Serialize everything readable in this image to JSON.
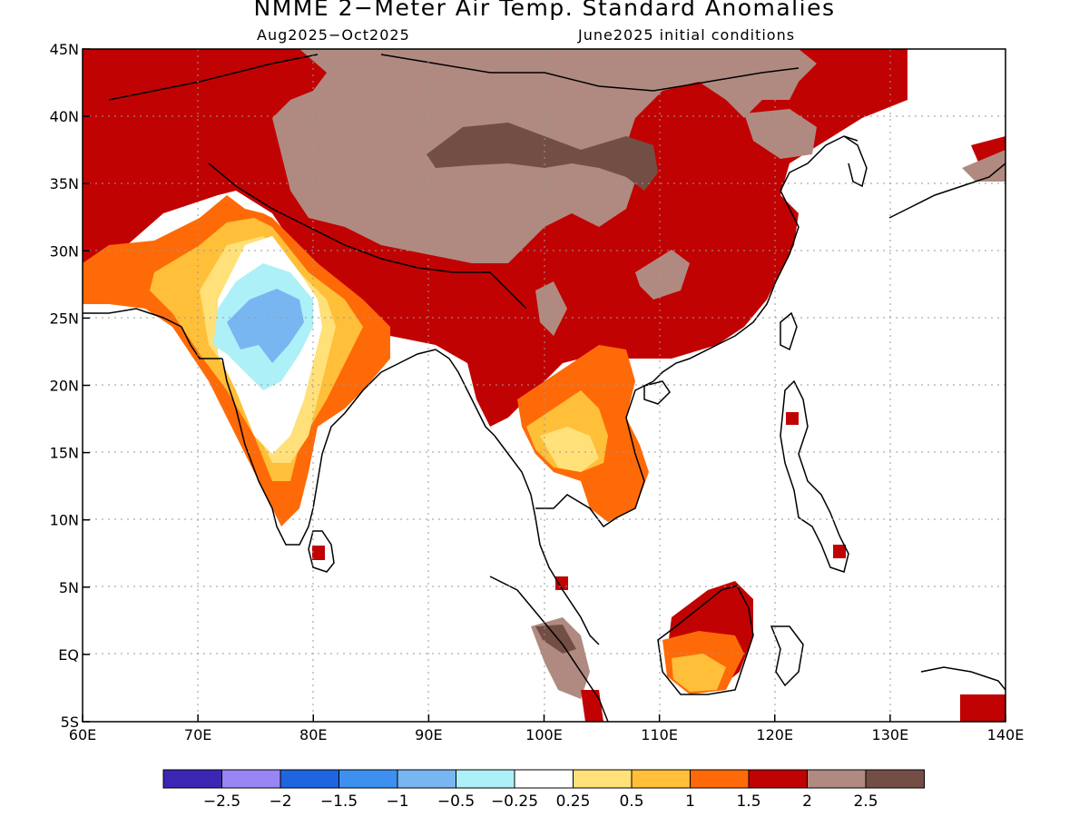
{
  "title": "NMME 2−Meter Air Temp. Standard Anomalies",
  "subtitle_left": "Aug2025−Oct2025",
  "subtitle_right": "June2025 initial conditions",
  "map": {
    "lon_range": [
      60,
      140
    ],
    "lat_range": [
      -5,
      45
    ],
    "x_ticks": [
      "60E",
      "70E",
      "80E",
      "90E",
      "100E",
      "110E",
      "120E",
      "130E",
      "140E"
    ],
    "y_ticks": [
      "5S",
      "EQ",
      "5N",
      "10N",
      "15N",
      "20N",
      "25N",
      "30N",
      "35N",
      "40N",
      "45N"
    ],
    "gridlines": "dotted"
  },
  "colorbar": {
    "colors": [
      "#3a26b3",
      "#9a85f5",
      "#1f65e0",
      "#3d90f0",
      "#78b6f2",
      "#aef0f7",
      "#ffffff",
      "#ffe079",
      "#ffbf39",
      "#ff6a08",
      "#c10202",
      "#b08a80",
      "#734e45"
    ],
    "labels": [
      "−2.5",
      "−2",
      "−1.5",
      "−1",
      "−0.5",
      "−0.25",
      "0.25",
      "0.5",
      "1",
      "1.5",
      "2",
      "2.5"
    ]
  },
  "anomaly_regions": [
    {
      "level": "2",
      "color": "#c10202",
      "description": "Central Asia, Pakistan, Tibet edges, southern China"
    },
    {
      "level": "2.5",
      "color": "#b08a80",
      "description": "Tibetan Plateau and Mongolia"
    },
    {
      "level": ">2.5",
      "color": "#734e45",
      "description": "Northern Tibet / Qinghai"
    },
    {
      "level": "-0.5 to -1",
      "color": "#78b6f2",
      "description": "Central-western India"
    },
    {
      "level": "0.5 to 1.5",
      "color": "#ffbf39",
      "description": "Indochina and northwest India"
    }
  ]
}
